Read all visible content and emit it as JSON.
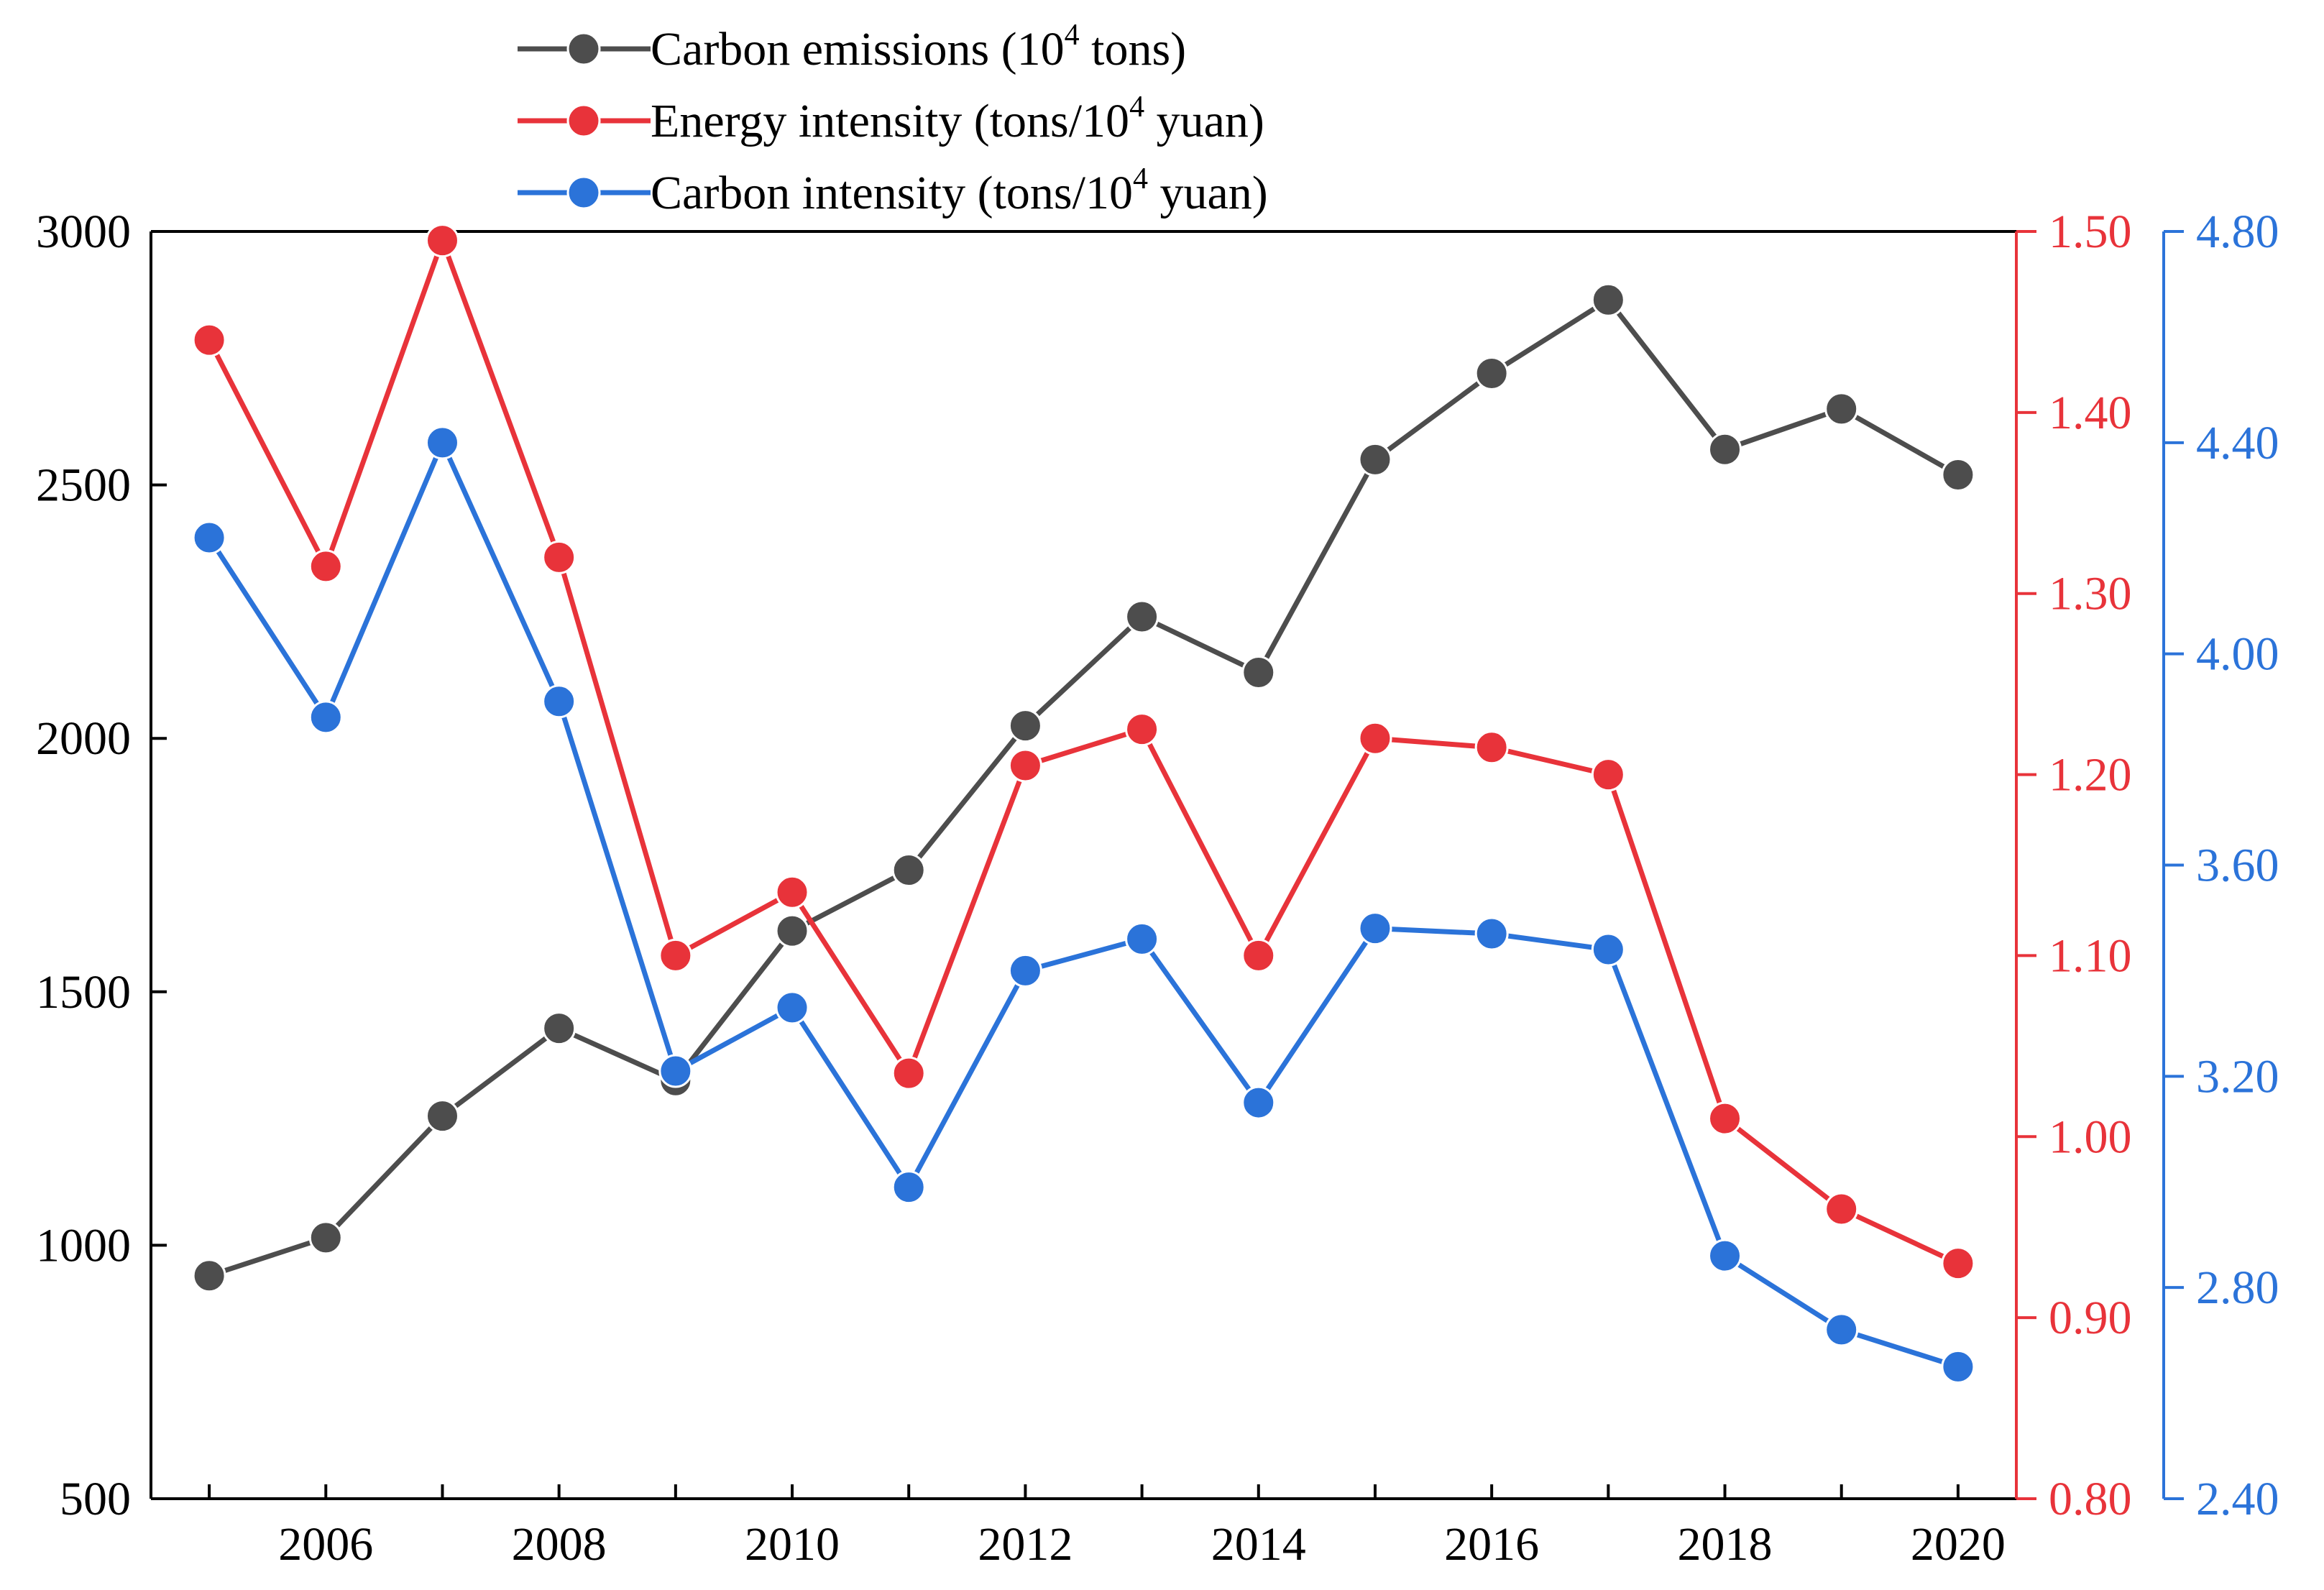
{
  "chart_data": {
    "type": "line",
    "title": "",
    "xlabel": "",
    "x": [
      2005,
      2006,
      2007,
      2008,
      2009,
      2010,
      2011,
      2012,
      2013,
      2014,
      2015,
      2016,
      2017,
      2018,
      2019,
      2020
    ],
    "x_tick_labels": [
      "2006",
      "2008",
      "2010",
      "2012",
      "2014",
      "2016",
      "2018",
      "2020"
    ],
    "xlim": [
      2004.5,
      2020.5
    ],
    "axes": [
      {
        "id": "left",
        "ylim": [
          500,
          3000
        ],
        "ticks": [
          "3000",
          "2500",
          "2000",
          "1500",
          "1000",
          "500"
        ],
        "color": "#000000"
      },
      {
        "id": "right1",
        "ylim": [
          0.8,
          1.5
        ],
        "ticks": [
          "1.50",
          "1.40",
          "1.30",
          "1.20",
          "1.10",
          "1.00",
          "0.90",
          "0.80"
        ],
        "color": "#e8333a"
      },
      {
        "id": "right2",
        "ylim": [
          2.4,
          4.8
        ],
        "ticks": [
          "4.80",
          "4.40",
          "4.00",
          "3.60",
          "3.20",
          "2.80",
          "2.40"
        ],
        "color": "#2b73d9"
      }
    ],
    "series": [
      {
        "name": "Carbon emissions",
        "unit_base": "10",
        "unit_exp": "4",
        "unit_rest": " tons)",
        "legend_prefix": "Carbon emissions (",
        "axis": "left",
        "color": "#4d4d4d",
        "values": [
          940,
          1015,
          1255,
          1428,
          1325,
          1620,
          1740,
          2025,
          2240,
          2130,
          2550,
          2720,
          2865,
          2570,
          2650,
          2520
        ]
      },
      {
        "name": "Energy intensity",
        "legend_prefix": "Energy intensity (tons/",
        "unit_base": "10",
        "unit_exp": "4",
        "unit_rest": " yuan)",
        "axis": "right1",
        "color": "#e8333a",
        "values": [
          1.44,
          1.315,
          1.495,
          1.32,
          1.1,
          1.135,
          1.035,
          1.205,
          1.225,
          1.1,
          1.22,
          1.215,
          1.2,
          1.01,
          0.96,
          0.93
        ]
      },
      {
        "name": "Carbon intensity",
        "legend_prefix": "Carbon intensity (tons/",
        "unit_base": "10",
        "unit_exp": "4",
        "unit_rest": " yuan)",
        "axis": "right2",
        "color": "#2b73d9",
        "values": [
          4.22,
          3.88,
          4.4,
          3.91,
          3.21,
          3.33,
          2.99,
          3.4,
          3.46,
          3.15,
          3.48,
          3.47,
          3.44,
          2.86,
          2.72,
          2.65
        ]
      }
    ],
    "legend_position": "top-center"
  }
}
